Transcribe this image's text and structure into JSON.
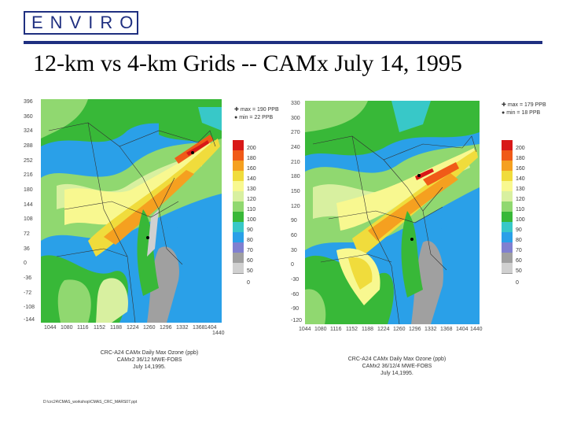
{
  "header": {
    "logo_text": "ENVIRON",
    "title": "12-km vs 4-km Grids -- CAMx July 14, 1995",
    "brand_color": "#1f2f80"
  },
  "left_map": {
    "max_label": "max = 190 PPB",
    "min_label": "min = 22 PPB",
    "y_ticks": [
      "396",
      "360",
      "324",
      "288",
      "252",
      "216",
      "180",
      "144",
      "108",
      "72",
      "36",
      "0",
      "-36",
      "-72",
      "-108",
      "-144"
    ],
    "x_ticks": [
      "1044",
      "1080",
      "1116",
      "1152",
      "1188",
      "1224",
      "1260",
      "1296",
      "1332",
      "1368",
      "1404",
      "1440"
    ],
    "colorbar_labels": [
      "200",
      "180",
      "160",
      "140",
      "130",
      "120",
      "110",
      "100",
      "90",
      "80",
      "70",
      "60",
      "50",
      "0"
    ],
    "caption": [
      "CRC-A24 CAMx Daily Max Ozone (ppb)",
      "CAMx2 36/12 MWE-FOBS",
      "July 14,1995."
    ]
  },
  "right_map": {
    "max_label": "max = 179 PPB",
    "min_label": "min = 18 PPB",
    "y_ticks": [
      "330",
      "300",
      "270",
      "240",
      "210",
      "180",
      "150",
      "120",
      "90",
      "60",
      "30",
      "0",
      "-30",
      "-60",
      "-90",
      "-120"
    ],
    "x_ticks": [
      "1044",
      "1080",
      "1116",
      "1152",
      "1188",
      "1224",
      "1260",
      "1296",
      "1332",
      "1368",
      "1404",
      "1440"
    ],
    "colorbar_labels": [
      "200",
      "180",
      "160",
      "140",
      "130",
      "120",
      "110",
      "100",
      "90",
      "80",
      "70",
      "60",
      "50",
      "0"
    ],
    "caption": [
      "CRC-A24 CAMx Daily Max Ozone (ppb)",
      "CAMx2 36/12/4 MWE-FOBS",
      "July 14,1995."
    ]
  },
  "file_path": "D:\\crc24\\CMAS_workshop\\CMAS_CRC_MARS07.ppt",
  "colors": [
    "#d81818",
    "#f05a18",
    "#f5a020",
    "#f0dc3c",
    "#f8f890",
    "#d8f0a0",
    "#90d870",
    "#38b838",
    "#38c8c8",
    "#2aa0e8",
    "#8080d0",
    "#a0a0a0",
    "#d0d0d0",
    "#ffffff"
  ]
}
